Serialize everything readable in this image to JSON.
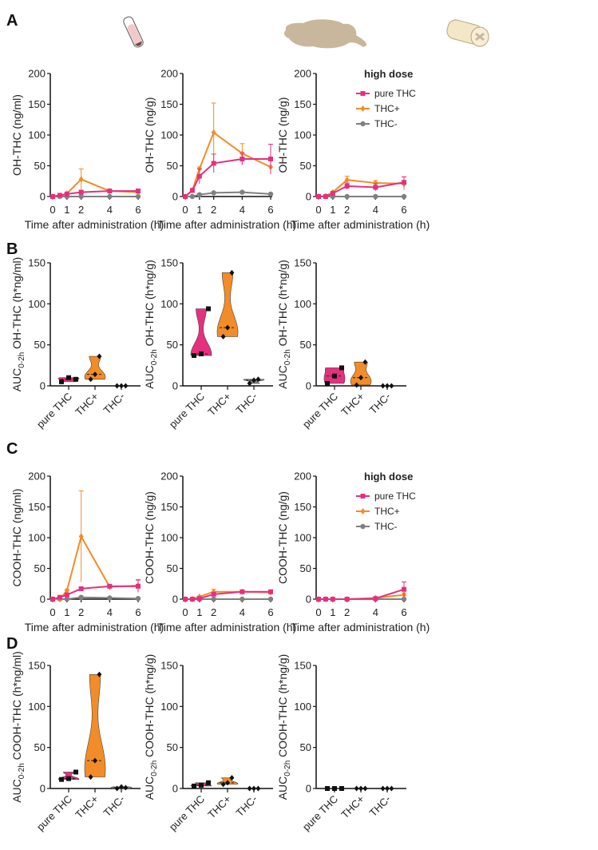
{
  "panel_letters": [
    "A",
    "B",
    "C",
    "D"
  ],
  "icons": [
    "test-tube-blood-icon",
    "brain-icon",
    "spinal-cord-icon"
  ],
  "colors": {
    "pure THC": "#e5307e",
    "THC+": "#f28c28",
    "THC-": "#808080"
  },
  "chart_data": [
    {
      "type": "line",
      "panel": "A",
      "ylabel": "OH-THC (ng/ml)",
      "xlabel": "Time after administration (h)",
      "x": [
        0,
        0.5,
        1,
        2,
        4,
        6
      ],
      "xticks": [
        0,
        1,
        2,
        4,
        6
      ],
      "yticks": [
        0,
        50,
        100,
        150,
        200
      ],
      "ylim": [
        0,
        200
      ],
      "series": [
        {
          "name": "pure THC",
          "values": [
            0,
            2,
            4,
            7,
            9,
            9
          ],
          "errors": [
            0,
            1,
            1,
            3,
            1,
            2
          ]
        },
        {
          "name": "THC+",
          "values": [
            0,
            1,
            5,
            28,
            9,
            7
          ],
          "errors": [
            0,
            1,
            1,
            17,
            1,
            1
          ]
        },
        {
          "name": "THC-",
          "values": [
            0,
            0,
            0,
            0,
            0,
            0
          ],
          "errors": [
            0,
            0,
            0,
            0,
            0,
            0
          ]
        }
      ]
    },
    {
      "type": "line",
      "panel": "A",
      "ylabel": "OH-THC (ng/g)",
      "xlabel": "Time after administration (h)",
      "x": [
        0,
        0.5,
        1,
        2,
        4,
        6
      ],
      "xticks": [
        0,
        1,
        2,
        4,
        6
      ],
      "yticks": [
        0,
        50,
        100,
        150,
        200
      ],
      "ylim": [
        0,
        200
      ],
      "series": [
        {
          "name": "pure THC",
          "values": [
            0,
            10,
            33,
            54,
            61,
            61
          ],
          "errors": [
            0,
            2,
            12,
            15,
            10,
            24
          ]
        },
        {
          "name": "THC+",
          "values": [
            0,
            10,
            45,
            104,
            70,
            48
          ],
          "errors": [
            0,
            2,
            3,
            48,
            16,
            12
          ]
        },
        {
          "name": "THC-",
          "values": [
            0,
            0,
            3,
            6,
            7,
            4
          ],
          "errors": [
            0,
            0,
            1,
            1,
            1,
            1
          ]
        }
      ]
    },
    {
      "type": "line",
      "panel": "A",
      "ylabel": "OH-THC (ng/g)",
      "xlabel": "Time after administration (h)",
      "x": [
        0,
        0.5,
        1,
        2,
        4,
        6
      ],
      "xticks": [
        0,
        1,
        2,
        4,
        6
      ],
      "yticks": [
        0,
        50,
        100,
        150,
        200
      ],
      "ylim": [
        0,
        200
      ],
      "legend_title": "high dose",
      "legend": "top-right",
      "series": [
        {
          "name": "pure THC",
          "values": [
            0,
            0,
            5,
            17,
            15,
            23
          ],
          "errors": [
            0,
            0,
            2,
            5,
            6,
            9
          ]
        },
        {
          "name": "THC+",
          "values": [
            0,
            1,
            7,
            27,
            22,
            21
          ],
          "errors": [
            0,
            1,
            1,
            6,
            4,
            11
          ]
        },
        {
          "name": "THC-",
          "values": [
            0,
            0,
            0,
            0,
            0,
            0
          ],
          "errors": [
            0,
            0,
            0,
            0,
            0,
            0
          ]
        }
      ]
    },
    {
      "type": "violin",
      "panel": "B",
      "ylabel_main": "AUC",
      "ylabel_sub": "0-2h",
      "ylabel_rest": " OH-THC (h*ng/ml)",
      "categories": [
        "pure THC",
        "THC+",
        "THC-"
      ],
      "yticks": [
        0,
        50,
        100,
        150
      ],
      "ylim": [
        0,
        150
      ],
      "groups": [
        [
          5,
          10,
          8
        ],
        [
          8,
          14,
          36
        ],
        [
          0,
          0,
          0
        ]
      ]
    },
    {
      "type": "violin",
      "panel": "B",
      "ylabel_main": "AUC",
      "ylabel_sub": "0-2h",
      "ylabel_rest": " OH-THC (h*ng/g)",
      "categories": [
        "pure THC",
        "THC+",
        "THC-"
      ],
      "yticks": [
        0,
        50,
        100,
        150
      ],
      "ylim": [
        0,
        150
      ],
      "groups": [
        [
          37,
          39,
          94
        ],
        [
          60,
          71,
          138
        ],
        [
          3,
          7,
          8
        ]
      ]
    },
    {
      "type": "violin",
      "panel": "B",
      "ylabel_main": "AUC",
      "ylabel_sub": "0-2h",
      "ylabel_rest": " OH-THC (h*ng/g)",
      "categories": [
        "pure THC",
        "THC+",
        "THC-"
      ],
      "yticks": [
        0,
        50,
        100,
        150
      ],
      "ylim": [
        0,
        150
      ],
      "groups": [
        [
          3,
          12,
          22
        ],
        [
          1,
          10,
          29
        ],
        [
          0,
          0,
          0
        ]
      ]
    },
    {
      "type": "line",
      "panel": "C",
      "ylabel": "COOH-THC (ng/ml)",
      "xlabel": "Time after administration (h)",
      "x": [
        0,
        0.5,
        1,
        2,
        4,
        6
      ],
      "xticks": [
        0,
        1,
        2,
        4,
        6
      ],
      "yticks": [
        0,
        50,
        100,
        150,
        200
      ],
      "ylim": [
        0,
        200
      ],
      "series": [
        {
          "name": "pure THC",
          "values": [
            0,
            3,
            7,
            17,
            21,
            21
          ],
          "errors": [
            0,
            1,
            1,
            2,
            2,
            10
          ]
        },
        {
          "name": "THC+",
          "values": [
            0,
            0,
            14,
            102,
            20,
            22
          ],
          "errors": [
            0,
            0,
            2,
            74,
            3,
            10
          ]
        },
        {
          "name": "THC-",
          "values": [
            0,
            0,
            0,
            3,
            2,
            1
          ],
          "errors": [
            0,
            0,
            0,
            1,
            1,
            1
          ]
        }
      ]
    },
    {
      "type": "line",
      "panel": "C",
      "ylabel": "COOH-THC (ng/g)",
      "xlabel": "Time after administration (h)",
      "x": [
        0,
        0.5,
        1,
        2,
        4,
        6
      ],
      "xticks": [
        0,
        1,
        2,
        4,
        6
      ],
      "yticks": [
        0,
        50,
        100,
        150,
        200
      ],
      "ylim": [
        0,
        200
      ],
      "series": [
        {
          "name": "pure THC",
          "values": [
            0,
            0,
            1,
            8,
            12,
            12
          ],
          "errors": [
            0,
            0,
            1,
            2,
            1,
            2
          ]
        },
        {
          "name": "THC+",
          "values": [
            0,
            0,
            4,
            12,
            12,
            11
          ],
          "errors": [
            0,
            0,
            1,
            4,
            1,
            2
          ]
        },
        {
          "name": "THC-",
          "values": [
            0,
            0,
            0,
            0,
            0,
            0
          ],
          "errors": [
            0,
            0,
            0,
            0,
            0,
            0
          ]
        }
      ]
    },
    {
      "type": "line",
      "panel": "C",
      "ylabel": "COOH-THC (ng/g)",
      "xlabel": "Time after administration (h)",
      "x": [
        0,
        0.5,
        1,
        2,
        4,
        6
      ],
      "xticks": [
        0,
        1,
        2,
        4,
        6
      ],
      "yticks": [
        0,
        50,
        100,
        150,
        200
      ],
      "ylim": [
        0,
        200
      ],
      "legend_title": "high dose",
      "legend": "top-right",
      "series": [
        {
          "name": "pure THC",
          "values": [
            0,
            0,
            0,
            0,
            1,
            16
          ],
          "errors": [
            0,
            0,
            0,
            0,
            1,
            12
          ]
        },
        {
          "name": "THC+",
          "values": [
            0,
            0,
            0,
            0,
            2,
            7
          ],
          "errors": [
            0,
            0,
            0,
            0,
            1,
            3
          ]
        },
        {
          "name": "THC-",
          "values": [
            0,
            0,
            0,
            0,
            0,
            0
          ],
          "errors": [
            0,
            0,
            0,
            0,
            0,
            0
          ]
        }
      ]
    },
    {
      "type": "violin",
      "panel": "D",
      "ylabel_main": "AUC",
      "ylabel_sub": "0-2h",
      "ylabel_rest": " COOH-THC (h*ng/ml)",
      "categories": [
        "pure THC",
        "THC+",
        "THC-"
      ],
      "yticks": [
        0,
        50,
        100,
        150
      ],
      "ylim": [
        0,
        150
      ],
      "groups": [
        [
          11,
          12,
          20
        ],
        [
          14,
          34,
          139
        ],
        [
          0,
          2,
          1
        ]
      ]
    },
    {
      "type": "violin",
      "panel": "D",
      "ylabel_main": "AUC",
      "ylabel_sub": "0-2h",
      "ylabel_rest": " COOH-THC (h*ng/g)",
      "categories": [
        "pure THC",
        "THC+",
        "THC-"
      ],
      "yticks": [
        0,
        50,
        100,
        150
      ],
      "ylim": [
        0,
        150
      ],
      "groups": [
        [
          3,
          4,
          7
        ],
        [
          5,
          7,
          13
        ],
        [
          0,
          0,
          0
        ]
      ]
    },
    {
      "type": "violin",
      "panel": "D",
      "ylabel_main": "AUC",
      "ylabel_sub": "0-2h",
      "ylabel_rest": " COOH-THC (h*ng/g)",
      "categories": [
        "pure THC",
        "THC+",
        "THC-"
      ],
      "yticks": [
        0,
        50,
        100,
        150
      ],
      "ylim": [
        0,
        150
      ],
      "groups": [
        [
          0,
          0,
          0
        ],
        [
          0,
          0,
          0
        ],
        [
          0,
          0,
          0
        ]
      ]
    }
  ]
}
